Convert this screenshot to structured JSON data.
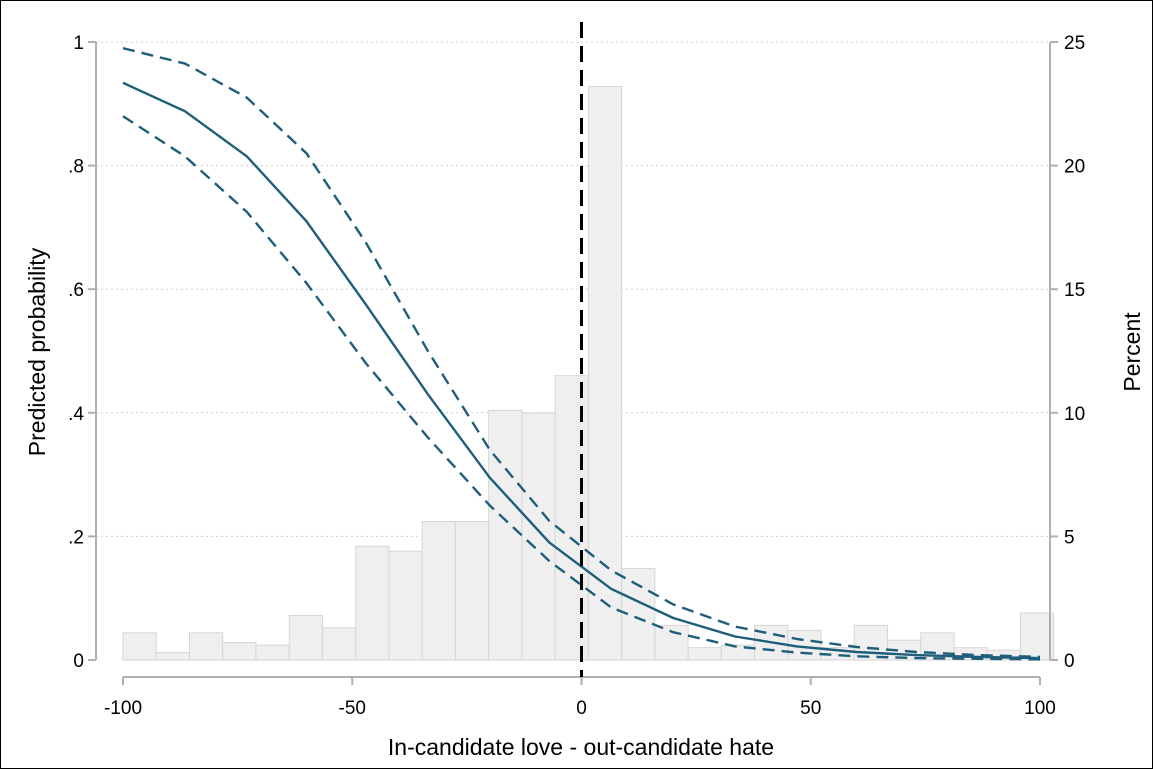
{
  "chart_data": {
    "type": "line",
    "title": "",
    "xlabel": "In-candidate love - out-candidate hate",
    "ylabel": "Predicted probability",
    "y2label": "Percent",
    "xlim": [
      -100,
      100
    ],
    "ylim": [
      0,
      1
    ],
    "y2lim": [
      0,
      25
    ],
    "x_ticks": [
      -100,
      -50,
      0,
      50,
      100
    ],
    "x_tick_labels": [
      "-100",
      "-50",
      "0",
      "50",
      "100"
    ],
    "y_ticks": [
      0,
      0.2,
      0.4,
      0.6,
      0.8,
      1
    ],
    "y_tick_labels": [
      "0",
      ".2",
      ".4",
      ".6",
      ".8",
      "1"
    ],
    "y2_ticks": [
      0,
      5,
      10,
      15,
      20,
      25
    ],
    "y2_tick_labels": [
      "0",
      "5",
      "10",
      "15",
      "20",
      "25"
    ],
    "grid": true,
    "reference_line_x": 0,
    "colors": {
      "line": "#1f5e7a",
      "bar_fill": "#efefef",
      "bar_stroke": "#d6d6d6",
      "grid": "#cfcfcf",
      "reference": "#000000"
    },
    "histogram": {
      "axis": "right",
      "bin_width": 7.25,
      "bins_left": [
        -100,
        -92.75,
        -85.5,
        -78.25,
        -71,
        -63.75,
        -56.5,
        -49.25,
        -42,
        -34.75,
        -27.5,
        -20.25,
        -13,
        -5.75,
        1.5,
        8.75,
        16,
        23.25,
        30.5,
        37.75,
        45,
        52.25,
        59.5,
        66.75,
        74,
        81.25,
        88.5,
        95.75
      ],
      "values": [
        1.1,
        0.3,
        1.1,
        0.7,
        0.6,
        1.8,
        1.3,
        4.6,
        4.4,
        5.6,
        5.6,
        10.1,
        10.0,
        11.5,
        23.2,
        3.7,
        1.4,
        0.5,
        0.6,
        1.4,
        1.2,
        0.5,
        1.4,
        0.8,
        1.1,
        0.5,
        0.4,
        1.9
      ]
    },
    "series": [
      {
        "x": [
          -100,
          -86.5,
          -73,
          -60,
          -47,
          -33.5,
          -20,
          -7,
          6.5,
          20,
          33.5,
          47,
          60,
          73,
          86.5,
          100
        ],
        "values": [
          0.934,
          0.888,
          0.815,
          0.71,
          0.575,
          0.43,
          0.295,
          0.19,
          0.115,
          0.068,
          0.038,
          0.022,
          0.013,
          0.008,
          0.005,
          0.003
        ],
        "style": "solid"
      },
      {
        "x": [
          -100,
          -86.5,
          -73,
          -60,
          -47,
          -33.5,
          -20,
          -7,
          6.5,
          20,
          33.5,
          47,
          60,
          73,
          86.5,
          100
        ],
        "values": [
          0.99,
          0.965,
          0.91,
          0.82,
          0.675,
          0.5,
          0.34,
          0.225,
          0.145,
          0.09,
          0.054,
          0.034,
          0.021,
          0.013,
          0.008,
          0.005
        ],
        "style": "dashed"
      },
      {
        "x": [
          -100,
          -86.5,
          -73,
          -60,
          -47,
          -33.5,
          -20,
          -7,
          6.5,
          20,
          33.5,
          47,
          60,
          73,
          86.5,
          100
        ],
        "values": [
          0.88,
          0.815,
          0.725,
          0.61,
          0.48,
          0.36,
          0.25,
          0.16,
          0.085,
          0.045,
          0.022,
          0.012,
          0.006,
          0.003,
          0.002,
          0.001
        ],
        "style": "dashed"
      }
    ]
  }
}
